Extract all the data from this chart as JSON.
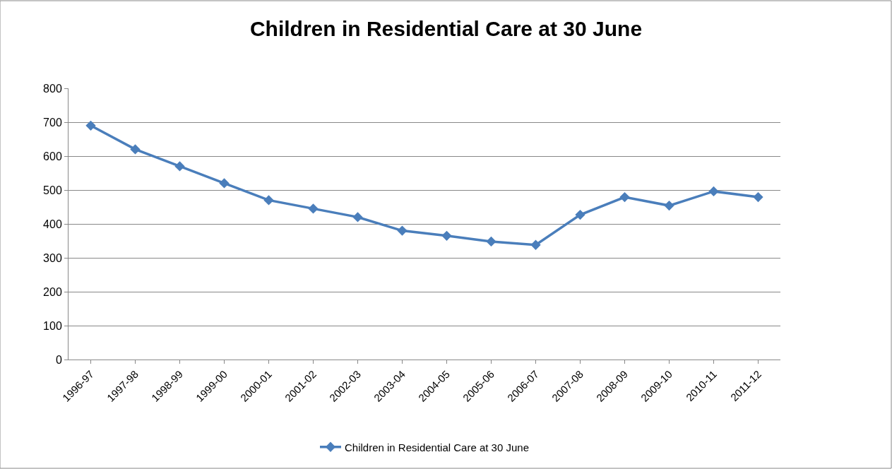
{
  "chart_data": {
    "type": "line",
    "title": "Children in Residential Care at 30 June",
    "categories": [
      "1996-97",
      "1997-98",
      "1998-99",
      "1999-00",
      "2000-01",
      "2001-02",
      "2002-03",
      "2003-04",
      "2004-05",
      "2005-06",
      "2006-07",
      "2007-08",
      "2008-09",
      "2009-10",
      "2010-11",
      "2011-12"
    ],
    "series": [
      {
        "name": "Children in Residential Care at 30 June",
        "color": "#4a7ebb",
        "values": [
          690,
          620,
          570,
          520,
          470,
          445,
          420,
          380,
          365,
          348,
          338,
          427,
          479,
          454,
          496,
          479
        ]
      }
    ],
    "ylim": [
      0,
      800
    ],
    "yticks": [
      0,
      100,
      200,
      300,
      400,
      500,
      600,
      700,
      800
    ],
    "grid": "y",
    "legend": "bottom",
    "marker": "diamond",
    "line_style": "solid"
  }
}
